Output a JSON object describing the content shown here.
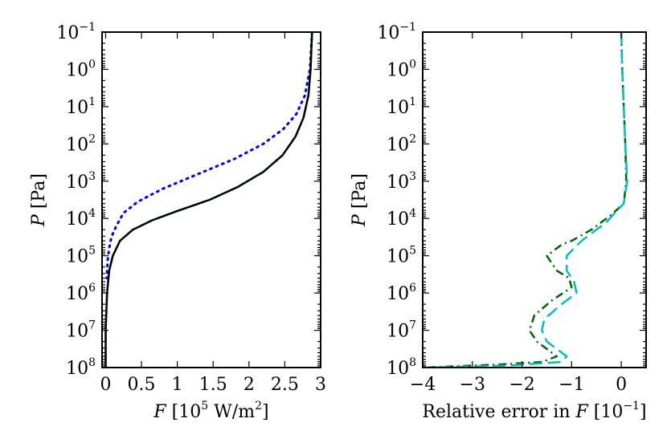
{
  "chart_data": [
    {
      "type": "line",
      "xlabel": {
        "var": "F",
        "text": " [10",
        "sup": "5",
        "text2": " W/m",
        "sup2": "2",
        "text3": "]"
      },
      "ylabel": {
        "var": "P",
        "text": " [Pa]"
      },
      "xlim": [
        -0.05,
        3.0
      ],
      "ylim_log10": [
        -1,
        8
      ],
      "y_inverted": true,
      "y_scale": "log",
      "xticks": [
        "0",
        "0.5",
        "1",
        "1.5",
        "2",
        "2.5",
        "3"
      ],
      "xtick_values": [
        0,
        0.5,
        1,
        1.5,
        2,
        2.5,
        3
      ],
      "yticks_exp": [
        "−1",
        "0",
        "1",
        "2",
        "3",
        "4",
        "5",
        "6",
        "7",
        "8"
      ],
      "ytick_base": "10",
      "ytick_values_log10": [
        -1,
        0,
        1,
        2,
        3,
        4,
        5,
        6,
        7,
        8
      ],
      "series": [
        {
          "style": "dotted",
          "color": "#0000ff",
          "x": [
            2.88,
            2.85,
            2.78,
            2.66,
            2.48,
            2.2,
            1.8,
            1.3,
            0.8,
            0.45,
            0.25,
            0.15,
            0.08,
            0.05,
            0.03,
            0.02,
            0.015
          ],
          "y": [
            -1,
            0,
            0.7,
            1.2,
            1.6,
            2.0,
            2.4,
            2.8,
            3.2,
            3.55,
            3.85,
            4.2,
            4.5,
            4.8,
            5.1,
            5.4,
            5.6
          ]
        },
        {
          "style": "dashed",
          "color": "#00bfbf",
          "x": [
            2.88,
            2.86,
            2.83,
            2.76,
            2.65,
            2.47,
            2.2,
            1.85,
            1.45,
            1.0,
            0.65,
            0.38,
            0.2,
            0.1,
            0.05,
            0.02,
            0.0,
            0.0
          ],
          "y": [
            -1,
            0,
            0.7,
            1.3,
            1.8,
            2.3,
            2.75,
            3.15,
            3.5,
            3.8,
            4.05,
            4.3,
            4.6,
            5.0,
            5.4,
            6.0,
            7.0,
            8.0
          ]
        },
        {
          "style": "solid",
          "color": "#000000",
          "x": [
            2.88,
            2.86,
            2.83,
            2.76,
            2.65,
            2.47,
            2.2,
            1.85,
            1.45,
            1.0,
            0.65,
            0.38,
            0.2,
            0.1,
            0.05,
            0.02,
            0.0,
            0.0
          ],
          "y": [
            -1,
            0,
            0.7,
            1.3,
            1.8,
            2.3,
            2.75,
            3.15,
            3.5,
            3.8,
            4.05,
            4.3,
            4.6,
            5.0,
            5.4,
            6.0,
            7.0,
            8.0
          ]
        }
      ]
    },
    {
      "type": "line",
      "xlabel": {
        "pre": "Relative error in ",
        "var": "F",
        "text": " [10",
        "sup": "−1",
        "text2": "]"
      },
      "ylabel": {
        "var": "P",
        "text": " [Pa]"
      },
      "xlim": [
        -4.0,
        0.5
      ],
      "ylim_log10": [
        -1,
        8
      ],
      "y_inverted": true,
      "y_scale": "log",
      "xticks": [
        "−4",
        "−3",
        "−2",
        "−1",
        "0"
      ],
      "xtick_values": [
        -4,
        -3,
        -2,
        -1,
        0
      ],
      "yticks_exp": [
        "−1",
        "0",
        "1",
        "2",
        "3",
        "4",
        "5",
        "6",
        "7",
        "8"
      ],
      "ytick_base": "10",
      "ytick_values_log10": [
        -1,
        0,
        1,
        2,
        3,
        4,
        5,
        6,
        7,
        8
      ],
      "series": [
        {
          "style": "dashdot",
          "color": "#006400",
          "x": [
            0.0,
            0.02,
            0.05,
            0.08,
            0.1,
            0.05,
            -0.2,
            -0.6,
            -1.0,
            -1.2,
            -1.5,
            -1.3,
            -1.05,
            -1.0,
            -1.4,
            -1.75,
            -1.85,
            -1.7,
            -1.5,
            -1.3,
            -1.6,
            -2.5,
            -4.0
          ],
          "y": [
            -1,
            0,
            1,
            2,
            3,
            3.6,
            3.9,
            4.3,
            4.6,
            4.7,
            5.0,
            5.4,
            5.6,
            5.85,
            6.2,
            6.6,
            7.0,
            7.3,
            7.5,
            7.7,
            7.85,
            7.92,
            8.0
          ]
        },
        {
          "style": "dashed",
          "color": "#00bfbf",
          "x": [
            0.0,
            0.02,
            0.05,
            0.08,
            0.12,
            0.05,
            -0.3,
            -0.8,
            -1.1,
            -1.1,
            -0.95,
            -0.9,
            -1.2,
            -1.55,
            -1.6,
            -1.5,
            -1.3,
            -1.1,
            -1.2,
            -2.3,
            -4.0
          ],
          "y": [
            -1,
            0,
            1,
            2,
            3,
            3.6,
            4.1,
            4.6,
            5.0,
            5.4,
            5.7,
            6.0,
            6.3,
            6.7,
            7.0,
            7.3,
            7.5,
            7.7,
            7.85,
            7.95,
            8.0
          ]
        }
      ]
    }
  ]
}
